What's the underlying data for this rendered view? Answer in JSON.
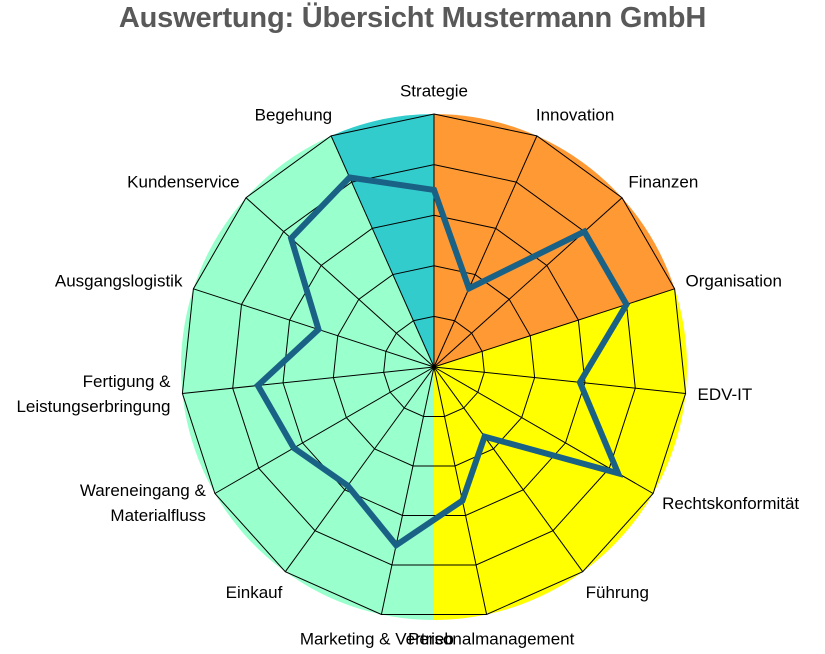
{
  "chart_data": {
    "type": "radar",
    "title": "Auswertung: Übersicht Mustermann GmbH",
    "categories": [
      "Strategie",
      "Innovation",
      "Finanzen",
      "Organisation",
      "EDV-IT",
      "Rechtskonformität",
      "Führung",
      "Personalmanagement",
      "Marketing & Vertrieb",
      "Einkauf",
      "Wareneingang & Materialfluss",
      "Fertigung & Leistungserbringung",
      "Ausgangslogistik",
      "Kundenservice",
      "Begehung"
    ],
    "rlim": [
      0,
      5
    ],
    "ring_count": 5,
    "series": [
      {
        "values": [
          3.5,
          1.7,
          4.0,
          4.0,
          2.9,
          4.2,
          1.7,
          2.7,
          3.6,
          2.9,
          3.2,
          3.5,
          2.4,
          3.8,
          4.1
        ]
      }
    ],
    "series_color": "#1a6186",
    "sector_bands": [
      {
        "from": 0,
        "to": 3,
        "color": "#ff9933"
      },
      {
        "from": 3,
        "to": 7.5,
        "color": "#ffff00"
      },
      {
        "from": 7.5,
        "to": 14,
        "color": "#99ffcc"
      },
      {
        "from": 14,
        "to": 15,
        "color": "#33cccc"
      }
    ]
  }
}
